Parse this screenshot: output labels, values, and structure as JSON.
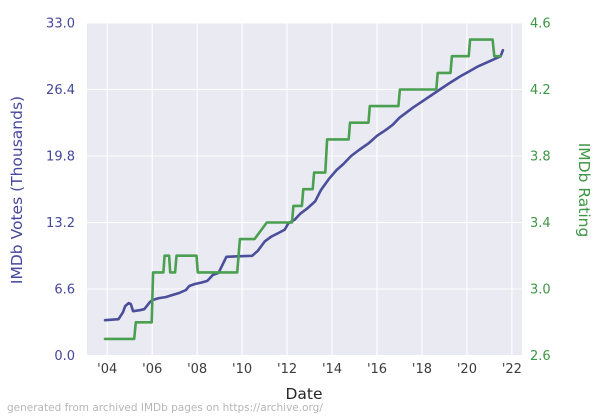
{
  "footer": {
    "text": "generated from archived IMDb pages on https://archive.org/",
    "color": "#b6b6b6"
  },
  "chart_data": {
    "type": "line",
    "title": "",
    "xlabel": "Date",
    "xlabel_color": "#262626",
    "plot_bg": "#eaeaf2",
    "grid_color": "#ffffff",
    "grid": true,
    "legend": "none",
    "x_domain": [
      2003.1,
      2022.45
    ],
    "x_ticks": [
      2004,
      2006,
      2008,
      2010,
      2012,
      2014,
      2016,
      2018,
      2020,
      2022
    ],
    "x_tick_labels": [
      "'04",
      "'06",
      "'08",
      "'10",
      "'12",
      "'14",
      "'16",
      "'18",
      "'20",
      "'22"
    ],
    "x_tick_color": "#3d3d3d",
    "axes": {
      "left": {
        "label": "IMDb Votes (Thousands)",
        "color": "#45479c",
        "range": [
          0,
          33
        ],
        "ticks": [
          0.0,
          6.6,
          13.2,
          19.8,
          26.4,
          33.0
        ],
        "tick_labels": [
          "0.0",
          "6.6",
          "13.2",
          "19.8",
          "26.4",
          "33.0"
        ]
      },
      "right": {
        "label": "IMDb Rating",
        "color": "#3f9646",
        "range": [
          2.6,
          4.6
        ],
        "ticks": [
          2.6,
          3.0,
          3.4,
          3.8,
          4.2,
          4.6
        ],
        "tick_labels": [
          "2.6",
          "3.0",
          "3.4",
          "3.8",
          "4.2",
          "4.6"
        ]
      }
    },
    "series": [
      {
        "name": "imdb-votes-thousands",
        "axis": "left",
        "color": "#4a4e9b",
        "points": [
          [
            2003.9,
            3.5
          ],
          [
            2004.2,
            3.55
          ],
          [
            2004.5,
            3.6
          ],
          [
            2004.7,
            4.3
          ],
          [
            2004.8,
            4.9
          ],
          [
            2004.95,
            5.2
          ],
          [
            2005.05,
            5.1
          ],
          [
            2005.15,
            4.4
          ],
          [
            2005.45,
            4.5
          ],
          [
            2005.65,
            4.6
          ],
          [
            2005.9,
            5.3
          ],
          [
            2006.0,
            5.5
          ],
          [
            2006.3,
            5.7
          ],
          [
            2006.6,
            5.8
          ],
          [
            2006.9,
            6.0
          ],
          [
            2007.2,
            6.2
          ],
          [
            2007.5,
            6.5
          ],
          [
            2007.65,
            6.9
          ],
          [
            2007.9,
            7.1
          ],
          [
            2008.2,
            7.25
          ],
          [
            2008.45,
            7.4
          ],
          [
            2008.7,
            8.0
          ],
          [
            2008.95,
            8.2
          ],
          [
            2009.3,
            9.8
          ],
          [
            2009.8,
            9.85
          ],
          [
            2010.45,
            9.9
          ],
          [
            2010.7,
            10.4
          ],
          [
            2011.0,
            11.3
          ],
          [
            2011.3,
            11.8
          ],
          [
            2011.65,
            12.2
          ],
          [
            2011.9,
            12.5
          ],
          [
            2012.05,
            13.1
          ],
          [
            2012.35,
            13.5
          ],
          [
            2012.6,
            14.1
          ],
          [
            2012.9,
            14.6
          ],
          [
            2013.1,
            15.0
          ],
          [
            2013.25,
            15.3
          ],
          [
            2013.5,
            16.4
          ],
          [
            2013.85,
            17.5
          ],
          [
            2014.2,
            18.4
          ],
          [
            2014.5,
            19.0
          ],
          [
            2014.85,
            19.8
          ],
          [
            2015.2,
            20.4
          ],
          [
            2015.65,
            21.1
          ],
          [
            2016.0,
            21.8
          ],
          [
            2016.4,
            22.4
          ],
          [
            2016.7,
            22.9
          ],
          [
            2017.0,
            23.6
          ],
          [
            2017.3,
            24.1
          ],
          [
            2017.6,
            24.6
          ],
          [
            2018.0,
            25.2
          ],
          [
            2018.4,
            25.8
          ],
          [
            2018.8,
            26.4
          ],
          [
            2019.2,
            27.0
          ],
          [
            2019.7,
            27.7
          ],
          [
            2020.1,
            28.2
          ],
          [
            2020.5,
            28.7
          ],
          [
            2020.9,
            29.1
          ],
          [
            2021.3,
            29.5
          ],
          [
            2021.5,
            29.7
          ],
          [
            2021.6,
            30.3
          ]
        ]
      },
      {
        "name": "imdb-rating",
        "axis": "right",
        "color": "#4aa050",
        "points": [
          [
            2003.9,
            2.7
          ],
          [
            2005.2,
            2.7
          ],
          [
            2005.27,
            2.8
          ],
          [
            2005.98,
            2.8
          ],
          [
            2006.04,
            3.1
          ],
          [
            2006.5,
            3.1
          ],
          [
            2006.55,
            3.2
          ],
          [
            2006.75,
            3.2
          ],
          [
            2006.8,
            3.1
          ],
          [
            2007.02,
            3.1
          ],
          [
            2007.08,
            3.2
          ],
          [
            2007.97,
            3.2
          ],
          [
            2008.03,
            3.1
          ],
          [
            2009.78,
            3.1
          ],
          [
            2009.9,
            3.3
          ],
          [
            2010.55,
            3.3
          ],
          [
            2011.1,
            3.4
          ],
          [
            2012.22,
            3.4
          ],
          [
            2012.28,
            3.5
          ],
          [
            2012.66,
            3.5
          ],
          [
            2012.72,
            3.6
          ],
          [
            2013.14,
            3.6
          ],
          [
            2013.2,
            3.7
          ],
          [
            2013.7,
            3.7
          ],
          [
            2013.78,
            3.9
          ],
          [
            2014.74,
            3.9
          ],
          [
            2014.8,
            4.0
          ],
          [
            2015.62,
            4.0
          ],
          [
            2015.68,
            4.1
          ],
          [
            2016.95,
            4.1
          ],
          [
            2017.02,
            4.2
          ],
          [
            2018.64,
            4.2
          ],
          [
            2018.7,
            4.3
          ],
          [
            2019.27,
            4.3
          ],
          [
            2019.33,
            4.4
          ],
          [
            2020.08,
            4.4
          ],
          [
            2020.14,
            4.5
          ],
          [
            2021.14,
            4.5
          ],
          [
            2021.22,
            4.4
          ],
          [
            2021.5,
            4.4
          ]
        ]
      }
    ]
  }
}
